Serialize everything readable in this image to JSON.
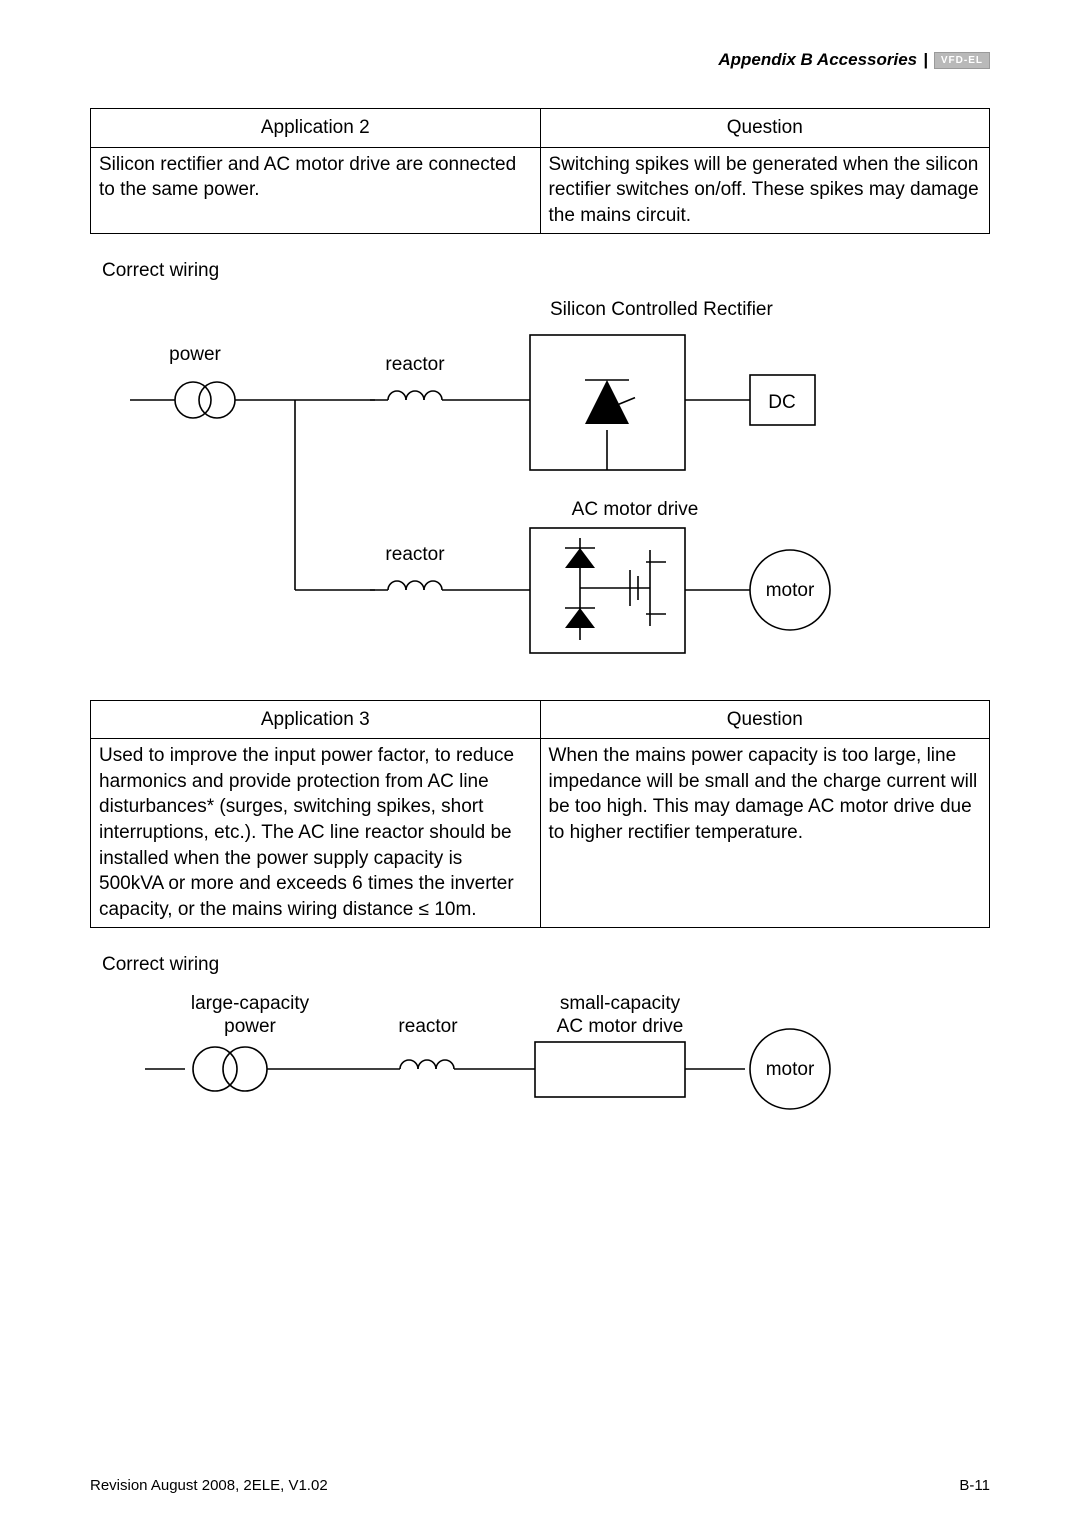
{
  "header": {
    "title": "Appendix B  Accessories",
    "logo_text": "VFD-EL"
  },
  "table1": {
    "col1_header": "Application 2",
    "col2_header": "Question",
    "col1_body": "Silicon rectifier and AC motor drive are connected to the same power.",
    "col2_body": "Switching spikes will be generated when the silicon rectifier switches on/off. These spikes may damage the mains circuit."
  },
  "section1_label": "Correct wiring",
  "diagram1": {
    "title": "Silicon Controlled Rectifier",
    "power_label": "power",
    "reactor_label": "reactor",
    "dc_label": "DC",
    "acdrive_label": "AC motor drive",
    "motor_label": "motor",
    "stroke": "#000000",
    "stroke_width": 1.6
  },
  "table2": {
    "col1_header": "Application 3",
    "col2_header": "Question",
    "col1_body": "Used to improve the input power factor, to reduce harmonics and provide protection from AC line disturbances* (surges, switching spikes, short interruptions, etc.). The AC line reactor should be installed when the power supply capacity is 500kVA or more and exceeds 6 times the inverter capacity, or the mains wiring distance ≤ 10m.",
    "col2_body": "When the mains power capacity is too large, line impedance will be small and the charge current will be too high. This may damage AC motor drive due to higher rectifier temperature."
  },
  "section2_label": "Correct wiring",
  "diagram2": {
    "power_label1": "large-capacity",
    "power_label2": "power",
    "reactor_label": "reactor",
    "drive_label1": "small-capacity",
    "drive_label2": "AC motor drive",
    "motor_label": "motor",
    "stroke": "#000000",
    "stroke_width": 1.6
  },
  "footer": {
    "left": "Revision August 2008, 2ELE, V1.02",
    "right": "B-11"
  }
}
